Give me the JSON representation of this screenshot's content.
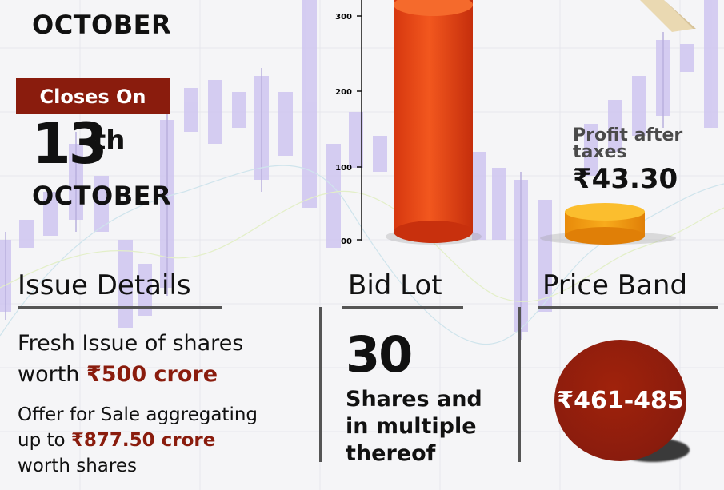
{
  "opens": {
    "month": "OCTOBER"
  },
  "closes": {
    "badge": "Closes On",
    "day": "13",
    "suffix": "th",
    "month": "OCTOBER"
  },
  "chart": {
    "ticks": [
      "300",
      "200",
      "100",
      "00"
    ]
  },
  "profit": {
    "label_line1": "Profit after",
    "label_line2": "taxes",
    "value": "₹43.30"
  },
  "issue": {
    "title": "Issue Details",
    "fresh_line1": "Fresh Issue of shares",
    "fresh_line2_prefix": "worth ",
    "fresh_amount": "₹500 crore",
    "ofs_line1": "Offer for Sale aggregating",
    "ofs_line2_prefix": "up to ",
    "ofs_amount": "₹877.50 crore",
    "ofs_line3": "worth shares"
  },
  "bid_lot": {
    "title": "Bid Lot",
    "number": "30",
    "line1": "Shares and",
    "line2": "in multiple",
    "line3": "thereof"
  },
  "price_band": {
    "title": "Price Band",
    "value": "₹461-485"
  },
  "colors": {
    "accent": "#8a1c0d",
    "candle": "#c9c0ee",
    "cylinder_red": "#e8441a",
    "cylinder_orange": "#f39a10"
  }
}
